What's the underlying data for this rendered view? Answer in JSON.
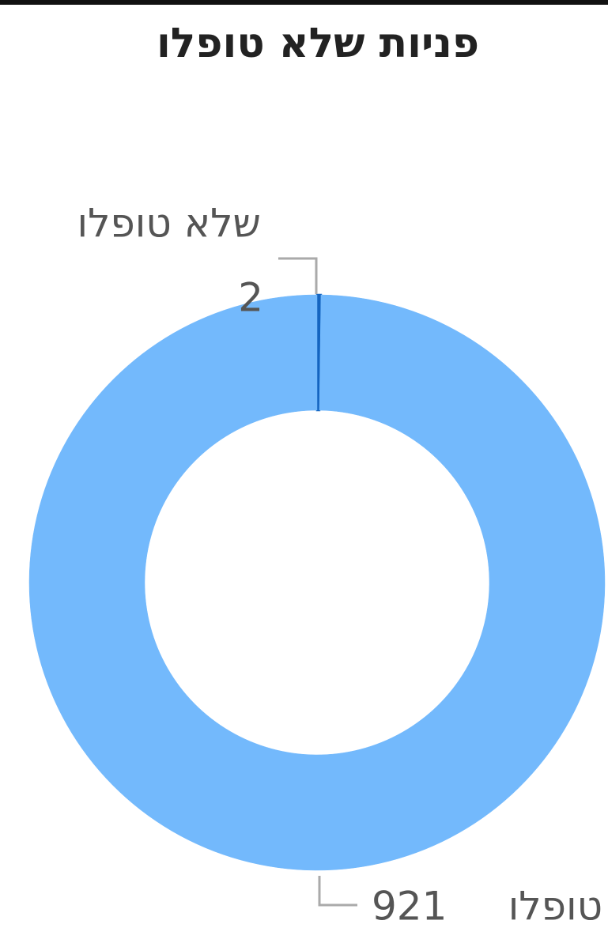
{
  "chart_data": {
    "type": "donut",
    "title": "פניות שלא טופלו",
    "categories": [
      "שלא טופלו",
      "טופלו"
    ],
    "values": [
      2,
      921
    ],
    "colors": [
      "#1565c0",
      "#73b9fc"
    ]
  }
}
